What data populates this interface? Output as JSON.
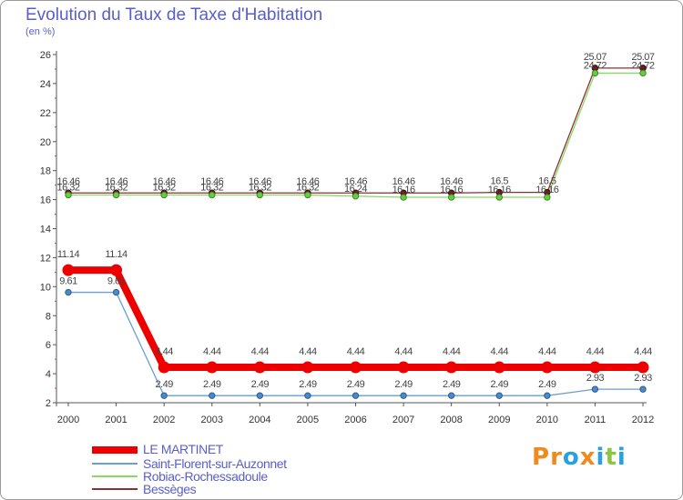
{
  "title": "Evolution du Taux de Taxe d'Habitation",
  "unit": "(en %)",
  "brand": {
    "name": "Proxiti",
    "letters": [
      "P",
      "r",
      "o",
      "x",
      "i",
      "t",
      "i"
    ],
    "colors": [
      "#f08a1c",
      "#f08a1c",
      "#2aa0e0",
      "#f08a1c",
      "#2aa0e0",
      "#8cc63f",
      "#2aa0e0"
    ]
  },
  "chart_data": {
    "type": "line",
    "title": "Evolution du Taux de Taxe d'Habitation",
    "ylabel": "(en %)",
    "xlabel": "",
    "x": [
      "2000",
      "2001",
      "2002",
      "2003",
      "2004",
      "2005",
      "2006",
      "2007",
      "2008",
      "2009",
      "2010",
      "2011",
      "2012"
    ],
    "ylim": [
      2,
      26
    ],
    "yticks": [
      2,
      4,
      6,
      8,
      10,
      12,
      14,
      16,
      18,
      20,
      22,
      24,
      26
    ],
    "grid": false,
    "legend_position": "bottom-left",
    "series": [
      {
        "name": "LE MARTINET",
        "color": "#ee0000",
        "values": [
          11.14,
          11.14,
          4.44,
          4.44,
          4.44,
          4.44,
          4.44,
          4.44,
          4.44,
          4.44,
          4.44,
          4.44,
          4.44
        ],
        "labels": [
          "11.14",
          "11.14",
          "4.44",
          "4.44",
          "4.44",
          "4.44",
          "4.44",
          "4.44",
          "4.44",
          "4.44",
          "4.44",
          "4.44",
          "4.44"
        ]
      },
      {
        "name": "Saint-Florent-sur-Auzonnet",
        "color": "#6a9fd0",
        "values": [
          9.61,
          9.61,
          2.49,
          2.49,
          2.49,
          2.49,
          2.49,
          2.49,
          2.49,
          2.49,
          2.49,
          2.93,
          2.93
        ],
        "labels": [
          "9.61",
          "9.61",
          "2.49",
          "2.49",
          "2.49",
          "2.49",
          "2.49",
          "2.49",
          "2.49",
          "2.49",
          "2.49",
          "2.93",
          "2.93"
        ]
      },
      {
        "name": "Robiac-Rochessadoule",
        "color": "#88d868",
        "values": [
          16.32,
          16.32,
          16.32,
          16.32,
          16.32,
          16.32,
          16.24,
          16.16,
          16.16,
          16.16,
          16.16,
          24.72,
          24.72
        ],
        "labels": [
          "16.32",
          "16.32",
          "16.32",
          "16.32",
          "16.32",
          "16.32",
          "16.24",
          "16.16",
          "16.16",
          "16.16",
          "16.16",
          "24.72",
          "24.72"
        ]
      },
      {
        "name": "Bessèges",
        "color": "#8a3030",
        "values": [
          16.46,
          16.46,
          16.46,
          16.46,
          16.46,
          16.46,
          16.46,
          16.46,
          16.46,
          16.5,
          16.5,
          25.07,
          25.07
        ],
        "labels": [
          "16.46",
          "16.46",
          "16.46",
          "16.46",
          "16.46",
          "16.46",
          "16.46",
          "16.46",
          "16.46",
          "16.5",
          "16.5",
          "25.07",
          "25.07"
        ]
      }
    ]
  }
}
